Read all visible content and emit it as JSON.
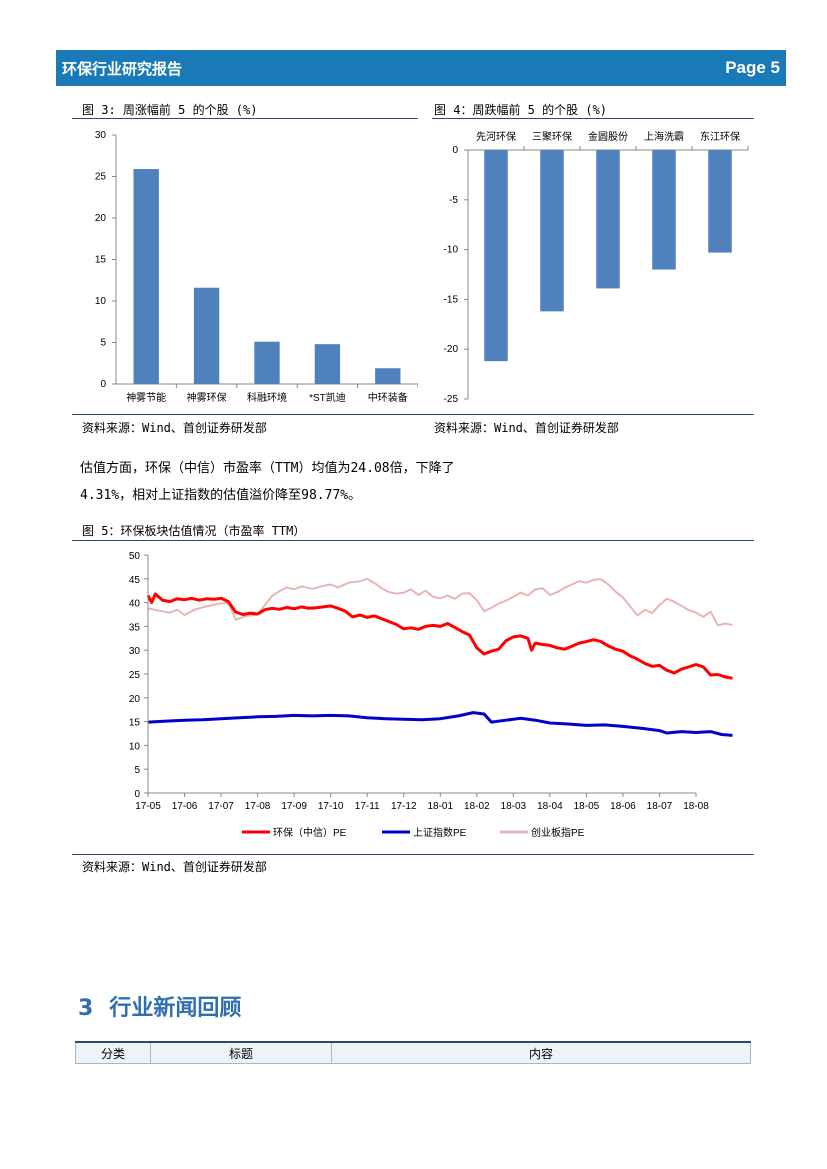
{
  "header": {
    "title": "环保行业研究报告",
    "page": "Page 5"
  },
  "fig3": {
    "caption": "图 3:  周涨幅前 5 的个股 (%)",
    "source": "资料来源：Wind、首创证券研发部",
    "chart_data": {
      "type": "bar",
      "title": "周涨幅前 5 的个股 (%)",
      "categories": [
        "神雾节能",
        "神雾环保",
        "科融环境",
        "*ST凯迪",
        "中环装备"
      ],
      "values": [
        25.9,
        11.6,
        5.1,
        4.8,
        1.9
      ],
      "ylim": [
        0,
        30
      ],
      "yticks": [
        0,
        5,
        10,
        15,
        20,
        25,
        30
      ],
      "color": "#4f81bd"
    }
  },
  "fig4": {
    "caption": "图 4：周跌幅前 5 的个股  (%)",
    "source": "资料来源：Wind、首创证券研发部",
    "chart_data": {
      "type": "bar",
      "title": "周跌幅前 5 的个股 (%)",
      "categories": [
        "先河环保",
        "三聚环保",
        "金圆股份",
        "上海洗霸",
        "东江环保"
      ],
      "values": [
        -21.2,
        -16.2,
        -13.9,
        -12.0,
        -10.3
      ],
      "ylim": [
        -25,
        0
      ],
      "yticks": [
        0,
        -5,
        -10,
        -15,
        -20,
        -25
      ],
      "color": "#4f81bd"
    }
  },
  "paragraph": {
    "line1": "估值方面，环保（中信）市盈率（TTM）均值为24.08倍，下降了",
    "line2": "4.31%，相对上证指数的估值溢价降至98.77%。"
  },
  "fig5": {
    "caption": "图 5：环保板块估值情况（市盈率 TTM）",
    "source": "资料来源：Wind、首创证券研发部",
    "chart_data": {
      "type": "line",
      "title": "环保板块估值情况（市盈率 TTM）",
      "x": [
        "17-05",
        "17-06",
        "17-07",
        "17-08",
        "17-09",
        "17-10",
        "17-11",
        "17-12",
        "18-01",
        "18-02",
        "18-03",
        "18-04",
        "18-05",
        "18-06",
        "18-07",
        "18-08"
      ],
      "ylim": [
        0,
        50
      ],
      "yticks": [
        0,
        5,
        10,
        15,
        20,
        25,
        30,
        35,
        40,
        45,
        50
      ],
      "series": [
        {
          "name": "环保（中信）PE",
          "color": "#ff0000",
          "values": [
            [
              0,
              41.5
            ],
            [
              0.1,
              40
            ],
            [
              0.2,
              41.8
            ],
            [
              0.4,
              40.5
            ],
            [
              0.6,
              40.2
            ],
            [
              0.8,
              40.8
            ],
            [
              1.0,
              40.6
            ],
            [
              1.2,
              40.9
            ],
            [
              1.4,
              40.5
            ],
            [
              1.6,
              40.8
            ],
            [
              1.8,
              40.7
            ],
            [
              2.0,
              40.9
            ],
            [
              2.2,
              40.2
            ],
            [
              2.4,
              38.0
            ],
            [
              2.6,
              37.5
            ],
            [
              2.8,
              37.8
            ],
            [
              3.0,
              37.6
            ],
            [
              3.2,
              38.5
            ],
            [
              3.4,
              38.8
            ],
            [
              3.6,
              38.6
            ],
            [
              3.8,
              39.0
            ],
            [
              4.0,
              38.7
            ],
            [
              4.2,
              39.1
            ],
            [
              4.4,
              38.8
            ],
            [
              4.6,
              38.9
            ],
            [
              4.8,
              39.1
            ],
            [
              5.0,
              39.3
            ],
            [
              5.2,
              38.8
            ],
            [
              5.4,
              38.2
            ],
            [
              5.6,
              37.0
            ],
            [
              5.8,
              37.4
            ],
            [
              6.0,
              36.9
            ],
            [
              6.2,
              37.2
            ],
            [
              6.4,
              36.6
            ],
            [
              6.6,
              36.0
            ],
            [
              6.8,
              35.4
            ],
            [
              7.0,
              34.5
            ],
            [
              7.2,
              34.7
            ],
            [
              7.4,
              34.4
            ],
            [
              7.6,
              35.0
            ],
            [
              7.8,
              35.2
            ],
            [
              8.0,
              35.0
            ],
            [
              8.2,
              35.6
            ],
            [
              8.4,
              34.8
            ],
            [
              8.6,
              33.9
            ],
            [
              8.8,
              33.2
            ],
            [
              9.0,
              30.5
            ],
            [
              9.2,
              29.2
            ],
            [
              9.4,
              29.8
            ],
            [
              9.6,
              30.2
            ],
            [
              9.8,
              32.0
            ],
            [
              10.0,
              32.8
            ],
            [
              10.2,
              33.0
            ],
            [
              10.4,
              32.5
            ],
            [
              10.5,
              30.0
            ],
            [
              10.6,
              31.5
            ],
            [
              10.8,
              31.2
            ],
            [
              11.0,
              31.0
            ],
            [
              11.2,
              30.5
            ],
            [
              11.4,
              30.2
            ],
            [
              11.6,
              30.8
            ],
            [
              11.8,
              31.5
            ],
            [
              12.0,
              31.8
            ],
            [
              12.2,
              32.2
            ],
            [
              12.4,
              31.8
            ],
            [
              12.6,
              30.9
            ],
            [
              12.8,
              30.2
            ],
            [
              13.0,
              29.8
            ],
            [
              13.2,
              28.8
            ],
            [
              13.4,
              28.1
            ],
            [
              13.6,
              27.2
            ],
            [
              13.8,
              26.6
            ],
            [
              14.0,
              26.8
            ],
            [
              14.2,
              25.8
            ],
            [
              14.4,
              25.2
            ],
            [
              14.6,
              26.0
            ],
            [
              14.8,
              26.5
            ],
            [
              15.0,
              27.0
            ],
            [
              15.2,
              26.5
            ],
            [
              15.4,
              24.8
            ],
            [
              15.6,
              24.9
            ],
            [
              15.8,
              24.4
            ],
            [
              16.0,
              24.1
            ]
          ]
        },
        {
          "name": "上证指数PE",
          "color": "#0000cc",
          "values": [
            [
              0,
              14.9
            ],
            [
              0.5,
              15.1
            ],
            [
              1.0,
              15.3
            ],
            [
              1.5,
              15.4
            ],
            [
              2.0,
              15.6
            ],
            [
              2.5,
              15.8
            ],
            [
              3.0,
              16.0
            ],
            [
              3.5,
              16.1
            ],
            [
              4.0,
              16.3
            ],
            [
              4.5,
              16.2
            ],
            [
              5.0,
              16.3
            ],
            [
              5.5,
              16.2
            ],
            [
              6.0,
              15.8
            ],
            [
              6.5,
              15.6
            ],
            [
              7.0,
              15.5
            ],
            [
              7.5,
              15.4
            ],
            [
              8.0,
              15.6
            ],
            [
              8.5,
              16.2
            ],
            [
              8.9,
              16.9
            ],
            [
              9.2,
              16.6
            ],
            [
              9.4,
              14.9
            ],
            [
              9.8,
              15.3
            ],
            [
              10.2,
              15.7
            ],
            [
              10.6,
              15.3
            ],
            [
              11.0,
              14.7
            ],
            [
              11.5,
              14.5
            ],
            [
              12.0,
              14.2
            ],
            [
              12.5,
              14.3
            ],
            [
              13.0,
              14.0
            ],
            [
              13.5,
              13.6
            ],
            [
              14.0,
              13.1
            ],
            [
              14.2,
              12.6
            ],
            [
              14.6,
              12.9
            ],
            [
              15.0,
              12.7
            ],
            [
              15.4,
              12.9
            ],
            [
              15.7,
              12.3
            ],
            [
              16.0,
              12.1
            ]
          ]
        },
        {
          "name": "创业板指PE",
          "color": "#e8b4b4",
          "values": [
            [
              0,
              38.8
            ],
            [
              0.3,
              38.3
            ],
            [
              0.6,
              37.9
            ],
            [
              0.8,
              38.5
            ],
            [
              1.0,
              37.4
            ],
            [
              1.3,
              38.6
            ],
            [
              1.6,
              39.2
            ],
            [
              1.9,
              39.7
            ],
            [
              2.2,
              40.0
            ],
            [
              2.4,
              36.4
            ],
            [
              2.7,
              37.2
            ],
            [
              3.0,
              37.5
            ],
            [
              3.2,
              39.5
            ],
            [
              3.4,
              41.4
            ],
            [
              3.6,
              42.4
            ],
            [
              3.8,
              43.2
            ],
            [
              4.0,
              42.8
            ],
            [
              4.2,
              43.4
            ],
            [
              4.5,
              42.9
            ],
            [
              4.8,
              43.5
            ],
            [
              5.0,
              43.8
            ],
            [
              5.2,
              43.2
            ],
            [
              5.5,
              44.2
            ],
            [
              5.8,
              44.5
            ],
            [
              6.0,
              45.0
            ],
            [
              6.2,
              44.1
            ],
            [
              6.4,
              43.0
            ],
            [
              6.6,
              42.2
            ],
            [
              6.8,
              41.9
            ],
            [
              7.0,
              42.1
            ],
            [
              7.2,
              42.8
            ],
            [
              7.4,
              41.6
            ],
            [
              7.6,
              42.5
            ],
            [
              7.8,
              41.2
            ],
            [
              8.0,
              40.9
            ],
            [
              8.2,
              41.5
            ],
            [
              8.4,
              40.8
            ],
            [
              8.6,
              41.9
            ],
            [
              8.8,
              42.0
            ],
            [
              9.0,
              40.5
            ],
            [
              9.2,
              38.2
            ],
            [
              9.4,
              38.9
            ],
            [
              9.6,
              39.8
            ],
            [
              9.8,
              40.4
            ],
            [
              10.0,
              41.2
            ],
            [
              10.2,
              42.1
            ],
            [
              10.4,
              41.5
            ],
            [
              10.6,
              42.8
            ],
            [
              10.8,
              43.0
            ],
            [
              11.0,
              41.6
            ],
            [
              11.2,
              42.2
            ],
            [
              11.4,
              43.1
            ],
            [
              11.6,
              43.8
            ],
            [
              11.8,
              44.5
            ],
            [
              12.0,
              44.2
            ],
            [
              12.2,
              44.8
            ],
            [
              12.4,
              44.9
            ],
            [
              12.6,
              43.8
            ],
            [
              12.8,
              42.3
            ],
            [
              13.0,
              41.1
            ],
            [
              13.2,
              39.2
            ],
            [
              13.4,
              37.3
            ],
            [
              13.6,
              38.5
            ],
            [
              13.8,
              37.8
            ],
            [
              14.0,
              39.5
            ],
            [
              14.2,
              40.8
            ],
            [
              14.4,
              40.2
            ],
            [
              14.6,
              39.3
            ],
            [
              14.8,
              38.4
            ],
            [
              15.0,
              37.9
            ],
            [
              15.2,
              37.0
            ],
            [
              15.4,
              38.1
            ],
            [
              15.6,
              35.2
            ],
            [
              15.8,
              35.6
            ],
            [
              16.0,
              35.3
            ]
          ]
        }
      ]
    }
  },
  "section3": {
    "number": "3",
    "title": "行业新闻回顾",
    "table": {
      "headers": [
        "分类",
        "标题",
        "内容"
      ]
    }
  }
}
